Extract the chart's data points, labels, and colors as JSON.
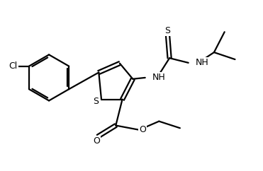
{
  "bg_color": "#ffffff",
  "line_color": "#000000",
  "line_width": 1.6,
  "font_size": 9,
  "fig_width": 3.71,
  "fig_height": 2.42,
  "dpi": 100,
  "xlim": [
    0,
    10
  ],
  "ylim": [
    0,
    6.5
  ]
}
